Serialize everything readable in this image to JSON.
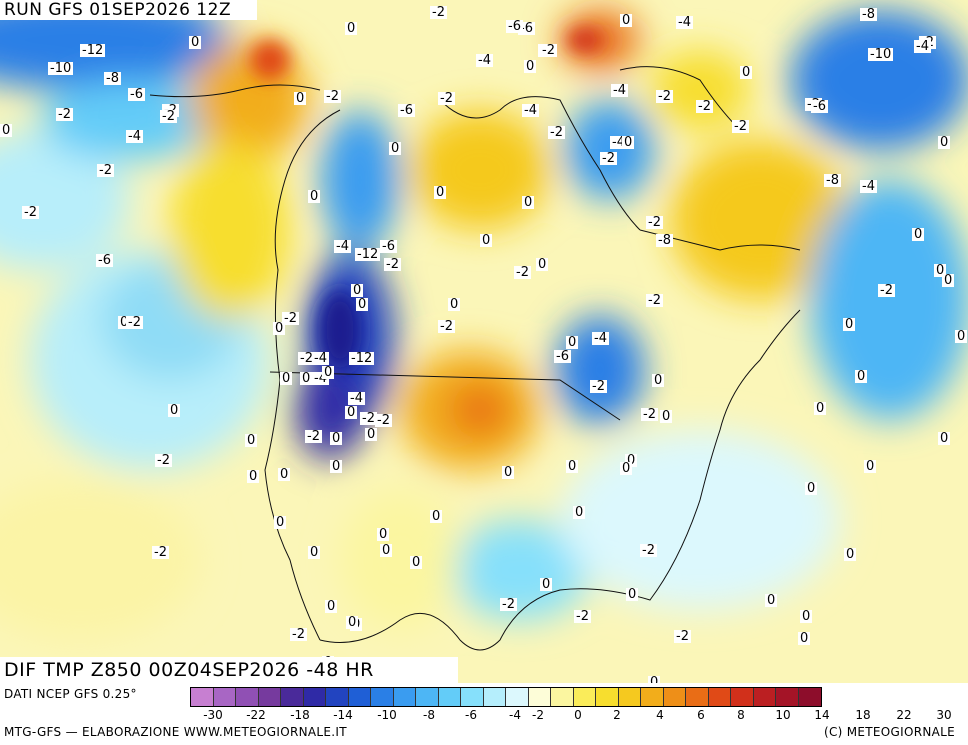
{
  "header": {
    "run_title": "RUN GFS 01SEP2026 12Z"
  },
  "field": {
    "title": "DIF TMP Z850 00Z04SEP2026 -48 HR"
  },
  "footer": {
    "data_source": "DATI NCEP GFS 0.25°",
    "processing": "MTG-GFS — ELABORAZIONE WWW.METEOGIORNALE.IT",
    "copyright": "(C) METEOGIORNALE"
  },
  "colorbar": {
    "colors": [
      "#c77fd1",
      "#a866c4",
      "#9050b4",
      "#763a9e",
      "#4a2a9a",
      "#2f2aa6",
      "#2244c0",
      "#1f5fd6",
      "#2a7fe6",
      "#3a9cf0",
      "#4db6f5",
      "#63ccf8",
      "#86e0fb",
      "#b5eefc",
      "#dcf8fd",
      "#fdfdd8",
      "#fbf6a0",
      "#faec5a",
      "#f7de2e",
      "#f5c91f",
      "#f2ad1b",
      "#ee8f18",
      "#e96d16",
      "#e04a17",
      "#d1301b",
      "#bb1f22",
      "#a41427",
      "#8d0d2b"
    ],
    "tick_labels": [
      "-30",
      "-22",
      "-18",
      "-14",
      "-10",
      "-8",
      "-6",
      "-4",
      "-2",
      "0",
      "2",
      "4",
      "6",
      "8",
      "10",
      "14",
      "18",
      "22",
      "30"
    ]
  },
  "contour_labels": [
    "-2",
    "-6",
    "-2",
    "0",
    "-4",
    "0",
    "-8",
    "-12",
    "-10",
    "-8",
    "-6",
    "-2",
    "-2",
    "0",
    "-4",
    "-2",
    "0",
    "-4",
    "-2",
    "0",
    "-4",
    "-2",
    "-2",
    "0",
    "-2",
    "-6",
    "-2",
    "0",
    "-2",
    "-6",
    "-2",
    "0",
    "-4",
    "-2",
    "-4",
    "-2",
    "0",
    "-10",
    "-4",
    "-6",
    "-2",
    "0",
    "-2",
    "-4",
    "-12",
    "0",
    "0",
    "-6",
    "-12",
    "-8",
    "-4",
    "-2",
    "-2",
    "-4",
    "0",
    "0",
    "-2",
    "-8",
    "-2",
    "-6",
    "0",
    "0",
    "-2",
    "0",
    "0",
    "-2",
    "0",
    "-4",
    "-6",
    "-2",
    "0",
    "-2",
    "0",
    "0",
    "0",
    "0",
    "0",
    "0",
    "-2",
    "0",
    "0",
    "0",
    "0",
    "0",
    "0",
    "0",
    "0",
    "0",
    "0",
    "0",
    "-2",
    "0",
    "0",
    "0",
    "0",
    "-4",
    "-2",
    "-4",
    "-2",
    "-2",
    "0",
    "0",
    "-2",
    "0",
    "-2",
    "0",
    "0",
    "-2",
    "0",
    "0",
    "-2",
    "0",
    "0",
    "0",
    "0",
    "0",
    "0",
    "0",
    "-2",
    "-2",
    "0",
    "-2",
    "0",
    "0",
    "-2",
    "0",
    "0",
    "0",
    "0",
    "0",
    "0",
    "-2",
    "0",
    "0",
    "0"
  ]
}
